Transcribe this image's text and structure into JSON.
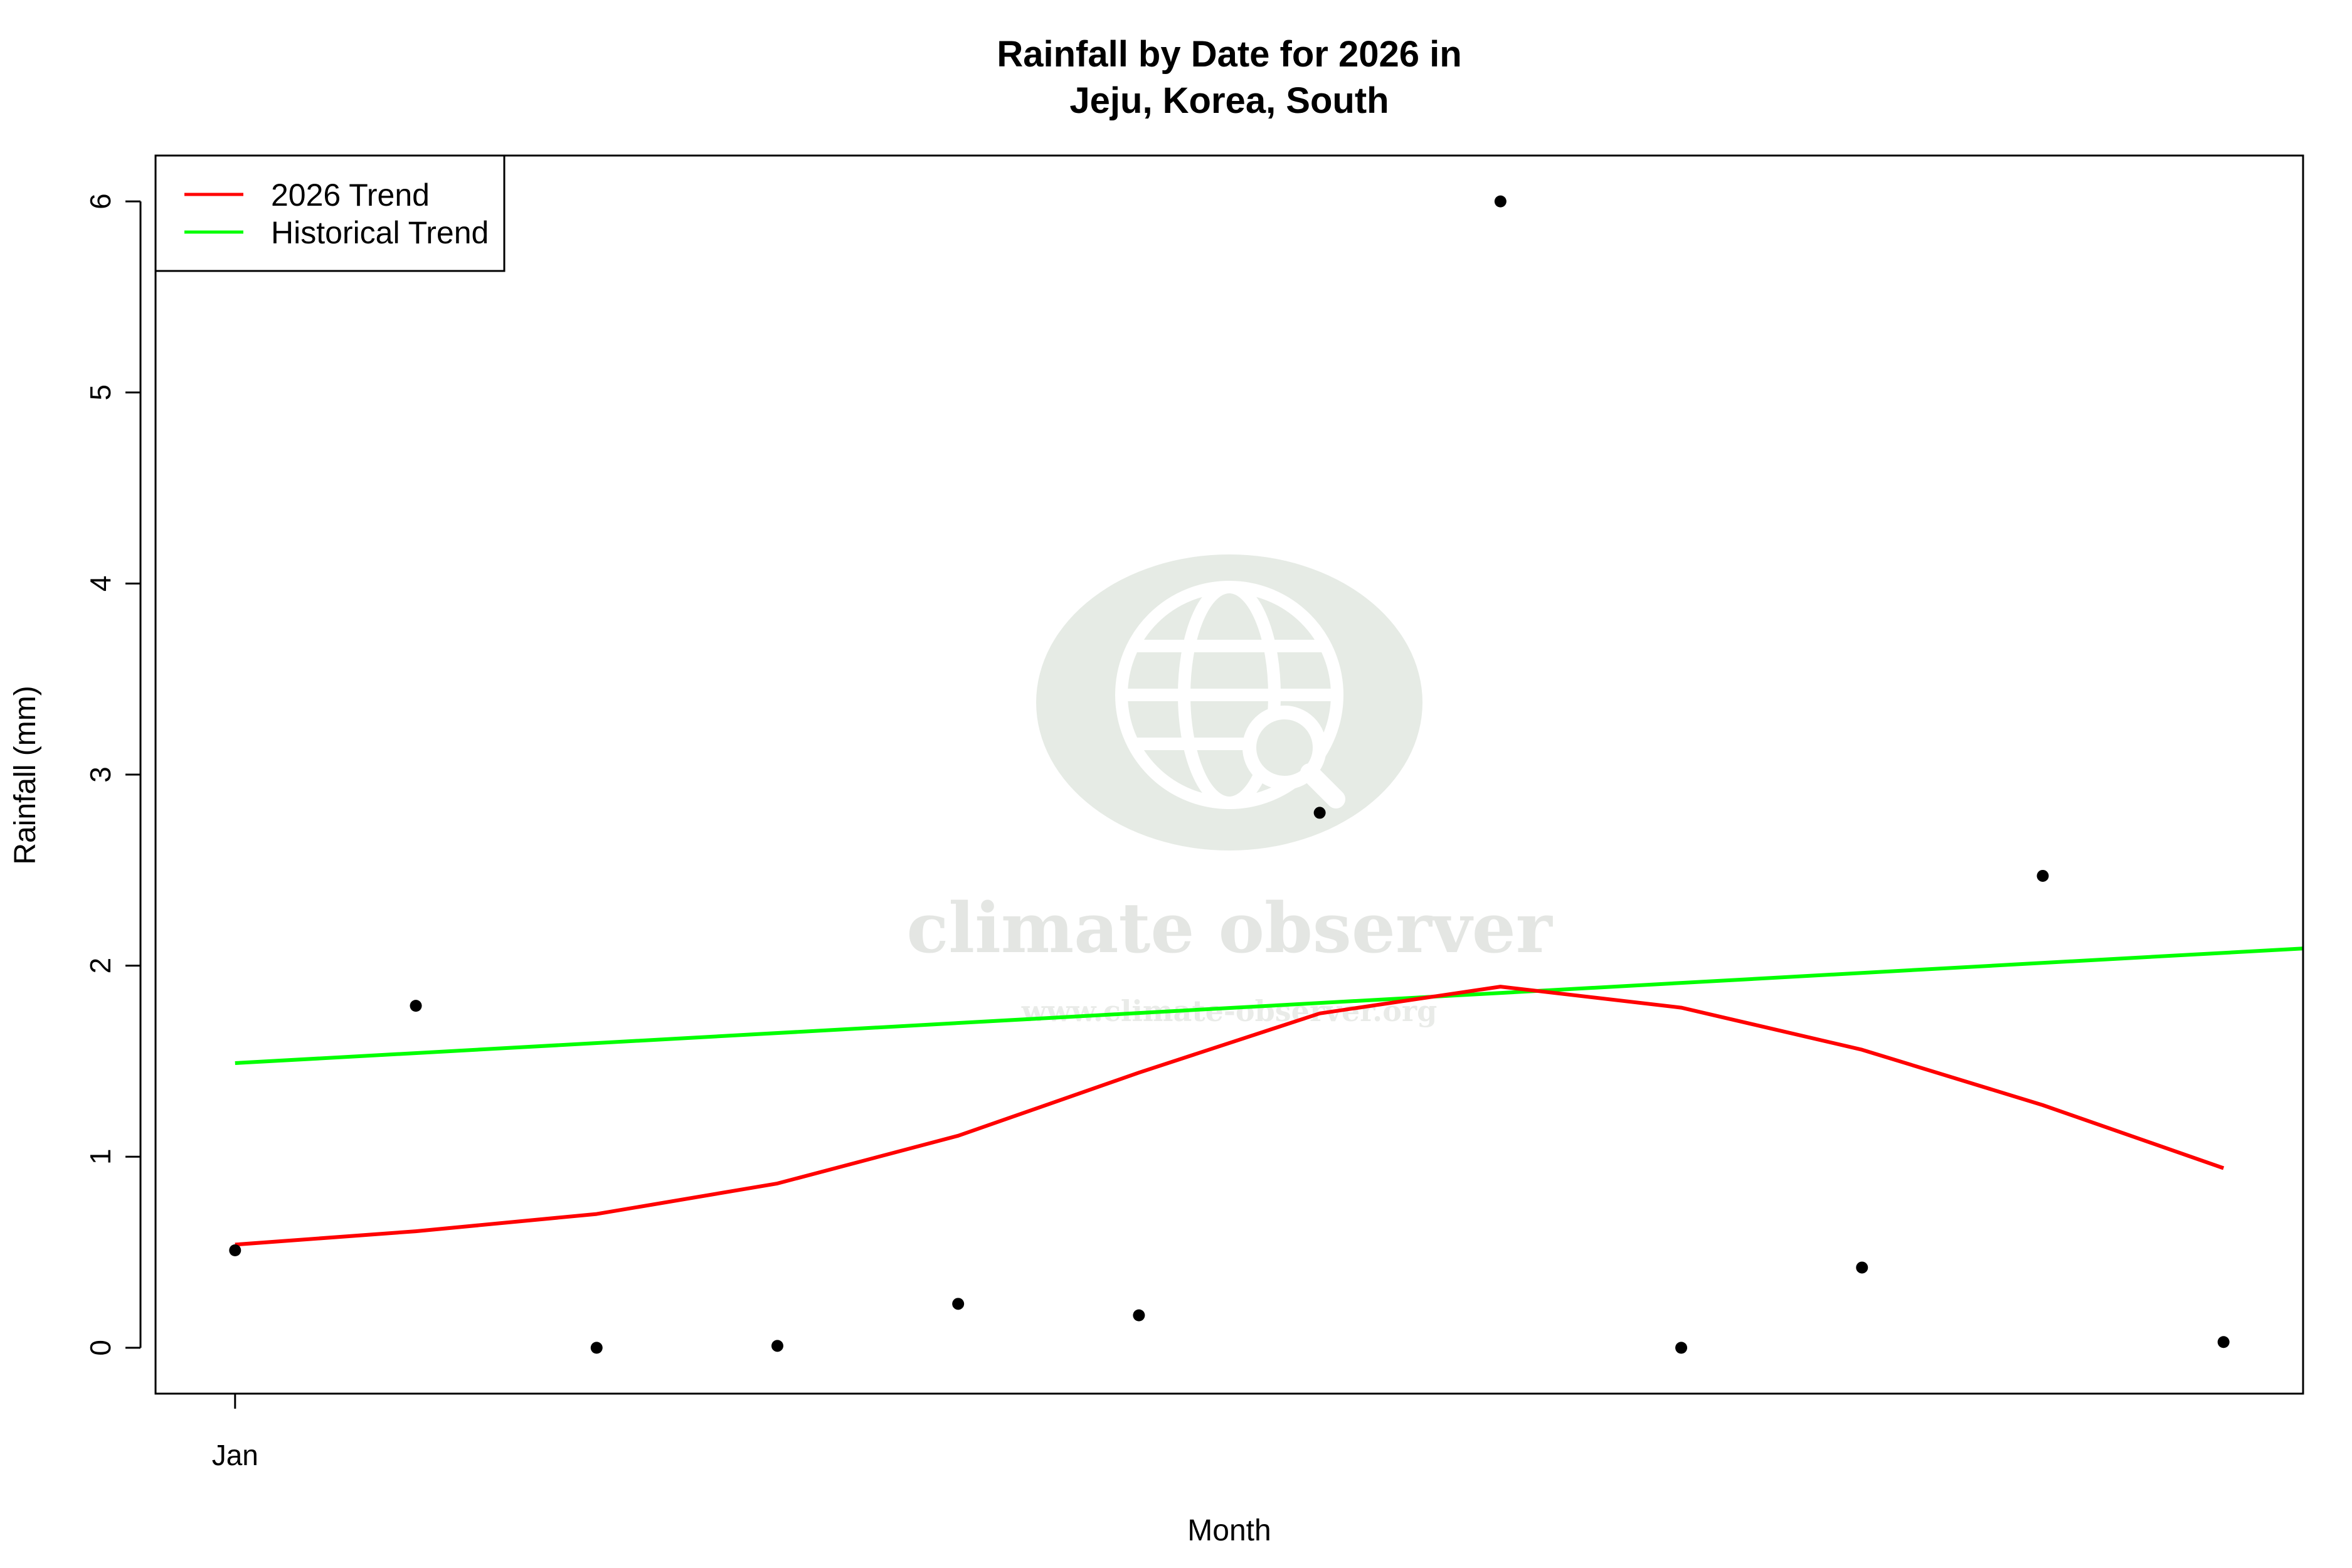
{
  "colors": {
    "trend_2026": "#ff0000",
    "historical_trend": "#00ff00",
    "points": "#000000",
    "watermark": "#e6ebe5"
  },
  "watermark": {
    "name": "climate observer",
    "url": "www.climate-observer.org",
    "icon": "globe-search-icon"
  },
  "chart_data": {
    "type": "scatter",
    "title": "Rainfall by Date for 2026 in\nJeju, Korea, South",
    "title_lines": [
      "Rainfall by Date for 2026 in",
      "Jeju, Korea, South"
    ],
    "xlabel": "Month",
    "ylabel": "Rainfall (mm)",
    "xlim": [
      0.56,
      12.44
    ],
    "ylim": [
      -0.24,
      6.24
    ],
    "x_ticks": [
      {
        "x": 1,
        "label": "Jan"
      }
    ],
    "y_ticks": [
      0,
      1,
      2,
      3,
      4,
      5,
      6
    ],
    "grid": false,
    "legend": {
      "placement": "top-left",
      "entries": [
        "2026 Trend",
        "Historical Trend"
      ]
    },
    "points": {
      "x": [
        1,
        2,
        3,
        4,
        5,
        6,
        7,
        8,
        9,
        10,
        11,
        12
      ],
      "y": [
        0.51,
        1.79,
        0.0,
        0.01,
        0.23,
        0.17,
        2.8,
        6.0,
        0.0,
        0.42,
        2.47,
        0.03
      ]
    },
    "series": [
      {
        "name": "2026 Trend",
        "type": "line",
        "x": [
          1,
          2,
          3,
          4,
          5,
          6,
          7,
          8,
          9,
          10,
          11,
          12
        ],
        "y": [
          0.54,
          0.61,
          0.7,
          0.86,
          1.11,
          1.44,
          1.75,
          1.89,
          1.78,
          1.56,
          1.27,
          0.94
        ]
      },
      {
        "name": "Historical Trend",
        "type": "line",
        "x": [
          1,
          12.44
        ],
        "y": [
          1.49,
          2.09
        ]
      }
    ]
  }
}
